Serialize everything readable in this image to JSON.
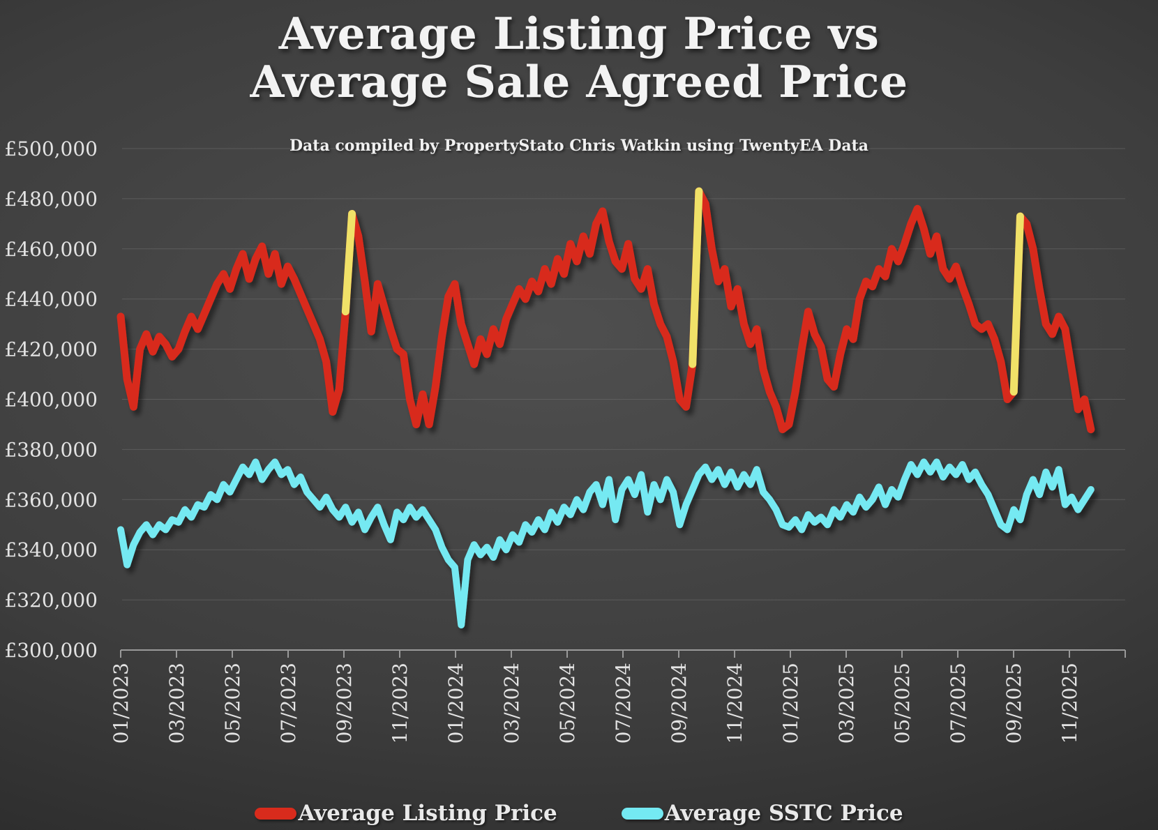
{
  "header": {
    "title_line1": "Average Listing Price vs",
    "title_line2": "Average Sale Agreed Price",
    "subtitle": "Data compiled by PropertyStato Chris Watkin using TwentyEA Data"
  },
  "colors": {
    "background_center": "#4f4f4f",
    "background_edge": "#242424",
    "listing_red": "#d82b1c",
    "sstc_cyan": "#74e9f2",
    "highlight_yellow": "#f0e168",
    "gridline": "#6f6f6f",
    "axis": "#9a9a9a",
    "text": "#e3e3e3"
  },
  "chart_data": {
    "type": "line",
    "title": "Average Listing Price vs Average Sale Agreed Price",
    "subtitle": "Data compiled by PropertyStato Chris Watkin using TwentyEA Data",
    "currency": "GBP",
    "grid": "horizontal-only",
    "y_axis": {
      "min": 300000,
      "max": 500000,
      "step": 20000,
      "tick_labels": [
        "£300,000",
        "£320,000",
        "£340,000",
        "£360,000",
        "£380,000",
        "£400,000",
        "£420,000",
        "£440,000",
        "£460,000",
        "£480,000",
        "£500,000"
      ]
    },
    "x_axis": {
      "tick_interval_months": 2,
      "span_months": 35,
      "tick_labels": [
        "01/2023",
        "03/2023",
        "05/2023",
        "07/2023",
        "09/2023",
        "11/2023",
        "01/2024",
        "03/2024",
        "05/2024",
        "07/2024",
        "09/2024",
        "11/2024",
        "01/2025",
        "03/2025",
        "05/2025",
        "07/2025",
        "09/2025",
        "11/2025"
      ]
    },
    "sampling": "weekly",
    "series": [
      {
        "name": "Average Listing Price",
        "color": "#d82b1c",
        "stroke_width": 11,
        "values": [
          433000,
          408000,
          397000,
          420000,
          426000,
          419000,
          425000,
          422000,
          417000,
          420000,
          427000,
          433000,
          428000,
          434000,
          440000,
          446000,
          450000,
          444000,
          452000,
          458000,
          448000,
          456000,
          461000,
          450000,
          458000,
          446000,
          453000,
          448000,
          442000,
          436000,
          430000,
          424000,
          415000,
          395000,
          404000,
          435000,
          474000,
          465000,
          447000,
          427000,
          446000,
          437000,
          428000,
          420000,
          418000,
          400000,
          390000,
          402000,
          390000,
          405000,
          425000,
          441000,
          446000,
          430000,
          422000,
          414000,
          424000,
          418000,
          428000,
          422000,
          432000,
          438000,
          444000,
          440000,
          447000,
          443000,
          452000,
          446000,
          456000,
          450000,
          462000,
          455000,
          465000,
          458000,
          470000,
          475000,
          463000,
          455000,
          452000,
          462000,
          448000,
          444000,
          452000,
          438000,
          430000,
          425000,
          415000,
          400000,
          397000,
          414000,
          483000,
          478000,
          460000,
          447000,
          452000,
          437000,
          444000,
          430000,
          422000,
          428000,
          412000,
          403000,
          397000,
          388000,
          390000,
          403000,
          420000,
          435000,
          426000,
          421000,
          408000,
          405000,
          418000,
          428000,
          424000,
          440000,
          447000,
          445000,
          452000,
          449000,
          460000,
          455000,
          462000,
          470000,
          476000,
          468000,
          458000,
          465000,
          452000,
          448000,
          453000,
          445000,
          438000,
          430000,
          428000,
          430000,
          424000,
          415000,
          400000,
          403000,
          473000,
          470000,
          460000,
          444000,
          430000,
          426000,
          433000,
          428000,
          412000,
          396000,
          400000,
          388000
        ]
      },
      {
        "name": "Average SSTC Price",
        "color": "#74e9f2",
        "stroke_width": 10,
        "values": [
          348000,
          334000,
          342000,
          347000,
          350000,
          346000,
          350000,
          348000,
          352000,
          351000,
          356000,
          353000,
          358000,
          357000,
          362000,
          360000,
          366000,
          363000,
          368000,
          373000,
          370000,
          375000,
          368000,
          372000,
          375000,
          370000,
          372000,
          366000,
          369000,
          363000,
          360000,
          357000,
          361000,
          356000,
          353000,
          357000,
          351000,
          355000,
          348000,
          353000,
          357000,
          350000,
          344000,
          355000,
          352000,
          357000,
          353000,
          356000,
          352000,
          348000,
          341000,
          336000,
          333000,
          310000,
          336000,
          342000,
          338000,
          341000,
          337000,
          344000,
          340000,
          346000,
          343000,
          350000,
          347000,
          352000,
          348000,
          355000,
          351000,
          357000,
          354000,
          360000,
          356000,
          363000,
          366000,
          358000,
          368000,
          352000,
          364000,
          368000,
          362000,
          370000,
          355000,
          366000,
          360000,
          368000,
          363000,
          350000,
          358000,
          364000,
          370000,
          373000,
          368000,
          372000,
          366000,
          371000,
          365000,
          370000,
          366000,
          372000,
          363000,
          360000,
          356000,
          350000,
          349000,
          352000,
          348000,
          354000,
          351000,
          353000,
          350000,
          356000,
          353000,
          358000,
          355000,
          361000,
          357000,
          360000,
          365000,
          358000,
          364000,
          361000,
          368000,
          374000,
          370000,
          375000,
          371000,
          375000,
          369000,
          373000,
          370000,
          374000,
          368000,
          371000,
          366000,
          362000,
          356000,
          350000,
          348000,
          356000,
          352000,
          362000,
          368000,
          362000,
          371000,
          365000,
          372000,
          358000,
          361000,
          356000,
          360000,
          364000
        ]
      }
    ],
    "highlight_segments": [
      {
        "series_index": 0,
        "from_index": 35,
        "to_index": 36,
        "color": "#f0e168",
        "note": "Sep 2023 jump"
      },
      {
        "series_index": 0,
        "from_index": 89,
        "to_index": 90,
        "color": "#f0e168",
        "note": "Sep 2024 jump"
      },
      {
        "series_index": 0,
        "from_index": 139,
        "to_index": 140,
        "color": "#f0e168",
        "note": "Sep 2025 jump"
      }
    ],
    "legend": {
      "position": "bottom-center",
      "items": [
        "Average Listing Price",
        "Average SSTC Price"
      ]
    }
  }
}
